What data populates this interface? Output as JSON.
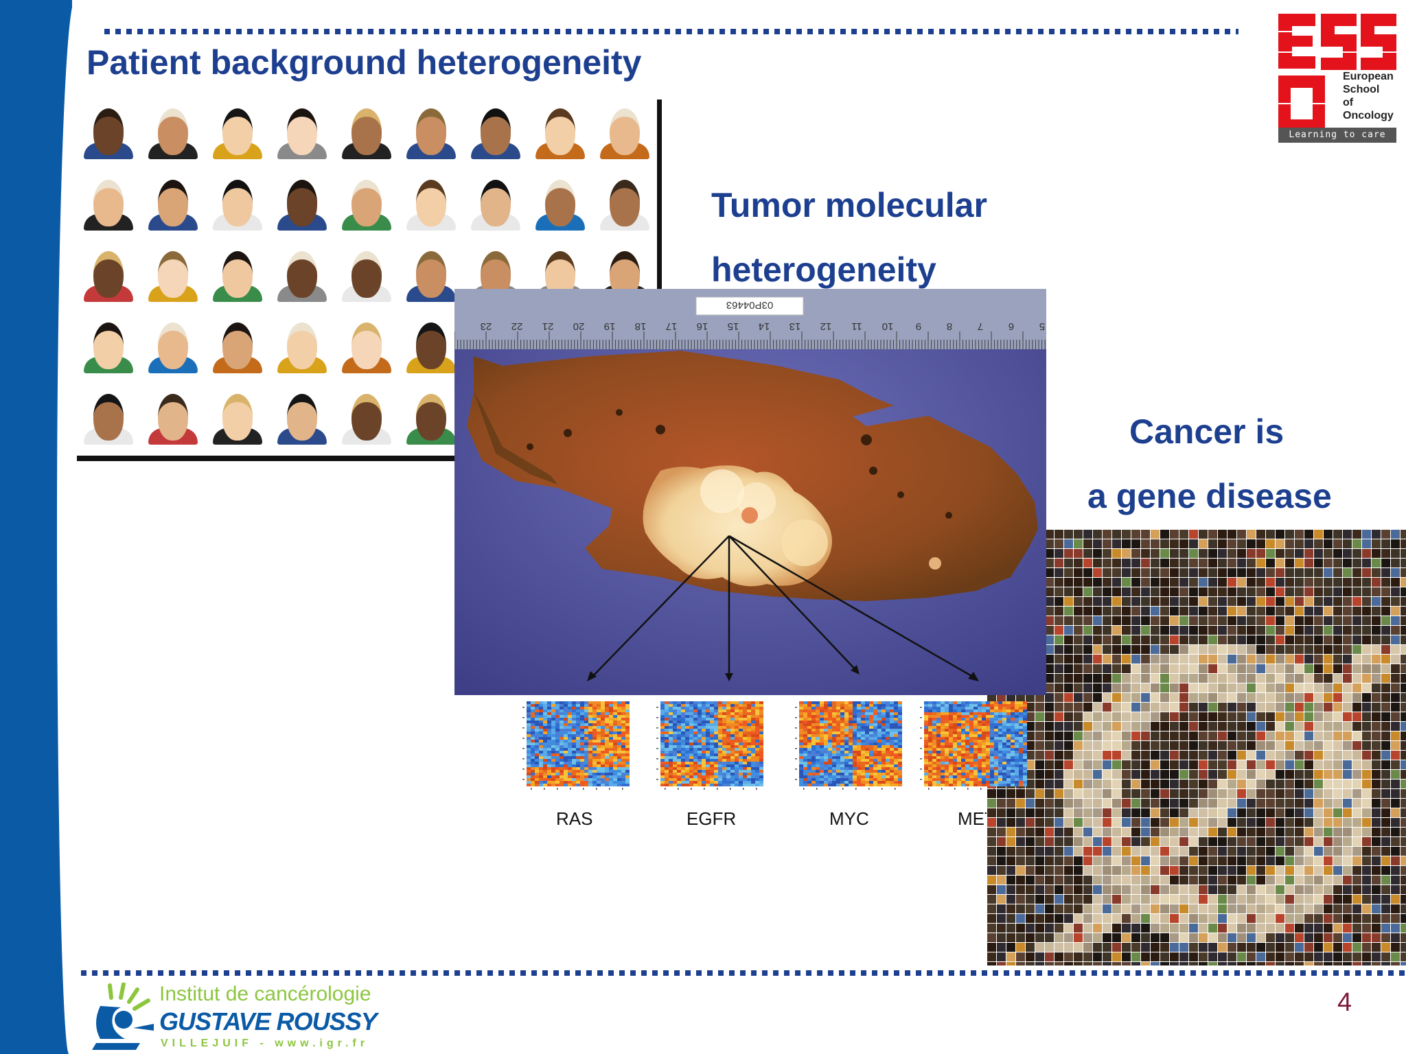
{
  "slide": {
    "title": "Patient background heterogeneity",
    "tumor_heading_line1": "Tumor molecular",
    "tumor_heading_line2": "heterogeneity",
    "cancer_line1": "Cancer is",
    "cancer_line2": "a gene disease",
    "page_number": "4"
  },
  "specimen_label": "03P04463",
  "ruler_numbers": [
    "23",
    "22",
    "21",
    "20",
    "19",
    "18",
    "17",
    "16",
    "15",
    "14",
    "13",
    "12",
    "11",
    "10",
    "9",
    "8",
    "7",
    "6",
    "5"
  ],
  "heatmap_labels": [
    "RAS",
    "EGFR",
    "MYC",
    "MET"
  ],
  "eso_logo": {
    "line1": "European",
    "line2": "School",
    "line3": "of",
    "line4": "Oncology",
    "tagline": "Learning to care"
  },
  "gr_logo": {
    "line1": "Institut de cancérologie",
    "line2": "GUSTAVE ROUSSY",
    "line3": "VILLEJUIF - www.igr.fr"
  },
  "colors": {
    "brand_blue": "#1d3f8f",
    "band_blue": "#0b5aa6",
    "eso_red": "#e3121b",
    "page_number": "#7b1a3c"
  }
}
